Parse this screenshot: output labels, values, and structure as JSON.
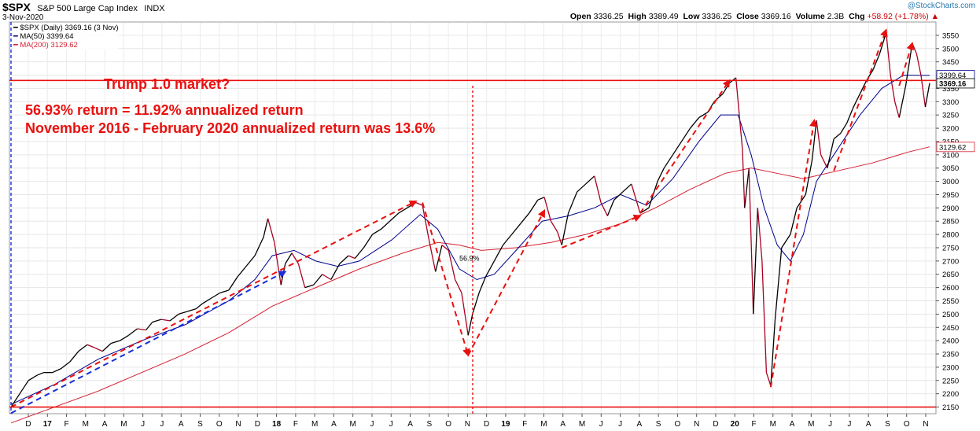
{
  "header": {
    "ticker": "$SPX",
    "name": "S&P 500 Large Cap Index",
    "exchange": "INDX",
    "date": "3-Nov-2020",
    "open_label": "Open",
    "open": "3336.25",
    "high_label": "High",
    "high": "3389.49",
    "low_label": "Low",
    "low": "3336.25",
    "close_label": "Close",
    "close": "3369.16",
    "volume_label": "Volume",
    "volume": "2.3B",
    "chg_label": "Chg",
    "chg": "+58.92 (+1.78%)",
    "chg_arrow": "▲",
    "brand_prefix": "@",
    "brand": "StockCharts.com"
  },
  "legend": {
    "price": "$SPX (Daily) 3369.16 (3 Nov)",
    "ma50": "MA(50) 3399.64",
    "ma200": "MA(200) 3129.62"
  },
  "annotations": {
    "title": "Trump 1.0 market?",
    "line1": "56.93% return = 11.92% annualized return",
    "line2": "November 2016 - February 2020 annualized return was 13.6%",
    "small_label": "56.9%"
  },
  "colors": {
    "price_up": "#000000",
    "price_down": "#aa0022",
    "ma50": "#00008b",
    "ma200": "#d22030",
    "annotation": "#e8110f",
    "blue_trend": "#1a2fd6"
  },
  "chart_data": {
    "type": "line",
    "title": "$SPX S&P 500 Large Cap Index",
    "ylim": [
      2125,
      3600
    ],
    "y_ticks": [
      2150,
      2200,
      2250,
      2300,
      2350,
      2400,
      2450,
      2500,
      2550,
      2600,
      2650,
      2700,
      2750,
      2800,
      2850,
      2900,
      2950,
      3000,
      3050,
      3100,
      3150,
      3200,
      3250,
      3300,
      3350,
      3400,
      3450,
      3500,
      3550
    ],
    "x_ticks": [
      "D",
      "17",
      "F",
      "M",
      "A",
      "M",
      "J",
      "J",
      "A",
      "S",
      "O",
      "N",
      "D",
      "18",
      "F",
      "M",
      "A",
      "M",
      "J",
      "J",
      "A",
      "S",
      "O",
      "N",
      "D",
      "19",
      "F",
      "M",
      "A",
      "M",
      "J",
      "J",
      "A",
      "S",
      "O",
      "N",
      "D",
      "20",
      "F",
      "M",
      "A",
      "M",
      "J",
      "J",
      "A",
      "S",
      "O",
      "N"
    ],
    "last_price_label": "3369.16",
    "ma50_label": "3399.64",
    "ma200_label": "3129.62",
    "horizontal_lines": [
      2150,
      3380
    ],
    "series": [
      {
        "name": "$SPX (Daily)",
        "values": [
          [
            0,
            2150
          ],
          [
            4,
            2200
          ],
          [
            8,
            2250
          ],
          [
            12,
            2270
          ],
          [
            15,
            2280
          ],
          [
            19,
            2280
          ],
          [
            23,
            2295
          ],
          [
            27,
            2320
          ],
          [
            31,
            2360
          ],
          [
            35,
            2385
          ],
          [
            38,
            2375
          ],
          [
            42,
            2360
          ],
          [
            46,
            2390
          ],
          [
            50,
            2400
          ],
          [
            54,
            2420
          ],
          [
            58,
            2445
          ],
          [
            62,
            2440
          ],
          [
            65,
            2470
          ],
          [
            69,
            2480
          ],
          [
            73,
            2475
          ],
          [
            77,
            2500
          ],
          [
            81,
            2510
          ],
          [
            85,
            2520
          ],
          [
            88,
            2540
          ],
          [
            92,
            2560
          ],
          [
            96,
            2580
          ],
          [
            100,
            2590
          ],
          [
            104,
            2640
          ],
          [
            108,
            2680
          ],
          [
            112,
            2720
          ],
          [
            116,
            2790
          ],
          [
            118,
            2860
          ],
          [
            121,
            2770
          ],
          [
            124,
            2610
          ],
          [
            126,
            2690
          ],
          [
            129,
            2730
          ],
          [
            132,
            2690
          ],
          [
            135,
            2600
          ],
          [
            139,
            2610
          ],
          [
            143,
            2650
          ],
          [
            147,
            2630
          ],
          [
            151,
            2690
          ],
          [
            155,
            2720
          ],
          [
            158,
            2710
          ],
          [
            162,
            2750
          ],
          [
            166,
            2800
          ],
          [
            170,
            2820
          ],
          [
            174,
            2850
          ],
          [
            178,
            2880
          ],
          [
            182,
            2900
          ],
          [
            186,
            2920
          ],
          [
            189,
            2910
          ],
          [
            192,
            2780
          ],
          [
            195,
            2660
          ],
          [
            198,
            2760
          ],
          [
            201,
            2740
          ],
          [
            204,
            2630
          ],
          [
            207,
            2580
          ],
          [
            210,
            2420
          ],
          [
            212,
            2500
          ],
          [
            215,
            2580
          ],
          [
            218,
            2640
          ],
          [
            222,
            2700
          ],
          [
            226,
            2760
          ],
          [
            230,
            2800
          ],
          [
            234,
            2840
          ],
          [
            238,
            2880
          ],
          [
            242,
            2930
          ],
          [
            245,
            2940
          ],
          [
            248,
            2850
          ],
          [
            251,
            2810
          ],
          [
            253,
            2760
          ],
          [
            256,
            2880
          ],
          [
            260,
            2960
          ],
          [
            264,
            2990
          ],
          [
            268,
            3020
          ],
          [
            271,
            2920
          ],
          [
            274,
            2870
          ],
          [
            277,
            2930
          ],
          [
            281,
            2960
          ],
          [
            285,
            2990
          ],
          [
            289,
            2880
          ],
          [
            293,
            2900
          ],
          [
            297,
            3000
          ],
          [
            300,
            3050
          ],
          [
            304,
            3100
          ],
          [
            308,
            3150
          ],
          [
            312,
            3200
          ],
          [
            316,
            3240
          ],
          [
            320,
            3260
          ],
          [
            323,
            3300
          ],
          [
            327,
            3330
          ],
          [
            330,
            3370
          ],
          [
            333,
            3390
          ],
          [
            336,
            3120
          ],
          [
            337,
            2900
          ],
          [
            339,
            3050
          ],
          [
            341,
            2500
          ],
          [
            343,
            2900
          ],
          [
            345,
            2700
          ],
          [
            347,
            2280
          ],
          [
            349,
            2230
          ],
          [
            351,
            2480
          ],
          [
            354,
            2750
          ],
          [
            358,
            2800
          ],
          [
            361,
            2900
          ],
          [
            365,
            2950
          ],
          [
            368,
            3080
          ],
          [
            370,
            3230
          ],
          [
            372,
            3100
          ],
          [
            375,
            3050
          ],
          [
            378,
            3160
          ],
          [
            381,
            3180
          ],
          [
            384,
            3220
          ],
          [
            387,
            3280
          ],
          [
            390,
            3330
          ],
          [
            393,
            3380
          ],
          [
            396,
            3420
          ],
          [
            399,
            3480
          ],
          [
            402,
            3560
          ],
          [
            404,
            3400
          ],
          [
            406,
            3300
          ],
          [
            408,
            3240
          ],
          [
            411,
            3360
          ],
          [
            414,
            3520
          ],
          [
            416,
            3480
          ],
          [
            418,
            3400
          ],
          [
            420,
            3280
          ],
          [
            422,
            3370
          ]
        ]
      },
      {
        "name": "MA(50)",
        "values": [
          [
            0,
            2160
          ],
          [
            20,
            2235
          ],
          [
            40,
            2330
          ],
          [
            60,
            2400
          ],
          [
            80,
            2460
          ],
          [
            100,
            2550
          ],
          [
            112,
            2630
          ],
          [
            120,
            2720
          ],
          [
            130,
            2740
          ],
          [
            140,
            2700
          ],
          [
            150,
            2680
          ],
          [
            160,
            2700
          ],
          [
            175,
            2780
          ],
          [
            188,
            2875
          ],
          [
            196,
            2820
          ],
          [
            206,
            2670
          ],
          [
            214,
            2630
          ],
          [
            222,
            2650
          ],
          [
            232,
            2740
          ],
          [
            244,
            2850
          ],
          [
            256,
            2870
          ],
          [
            268,
            2900
          ],
          [
            280,
            2950
          ],
          [
            292,
            2910
          ],
          [
            304,
            3010
          ],
          [
            316,
            3150
          ],
          [
            326,
            3250
          ],
          [
            334,
            3250
          ],
          [
            340,
            3100
          ],
          [
            346,
            2900
          ],
          [
            352,
            2760
          ],
          [
            358,
            2700
          ],
          [
            364,
            2800
          ],
          [
            370,
            3000
          ],
          [
            378,
            3100
          ],
          [
            390,
            3250
          ],
          [
            400,
            3350
          ],
          [
            410,
            3400
          ],
          [
            422,
            3399
          ]
        ]
      },
      {
        "name": "MA(200)",
        "values": [
          [
            0,
            2090
          ],
          [
            20,
            2150
          ],
          [
            40,
            2210
          ],
          [
            60,
            2280
          ],
          [
            80,
            2350
          ],
          [
            100,
            2430
          ],
          [
            120,
            2530
          ],
          [
            140,
            2600
          ],
          [
            160,
            2670
          ],
          [
            180,
            2730
          ],
          [
            196,
            2770
          ],
          [
            206,
            2760
          ],
          [
            216,
            2740
          ],
          [
            232,
            2750
          ],
          [
            248,
            2770
          ],
          [
            264,
            2800
          ],
          [
            280,
            2840
          ],
          [
            296,
            2900
          ],
          [
            312,
            2970
          ],
          [
            328,
            3030
          ],
          [
            340,
            3050
          ],
          [
            352,
            3030
          ],
          [
            364,
            3010
          ],
          [
            380,
            3040
          ],
          [
            396,
            3070
          ],
          [
            412,
            3110
          ],
          [
            422,
            3130
          ]
        ]
      }
    ]
  }
}
